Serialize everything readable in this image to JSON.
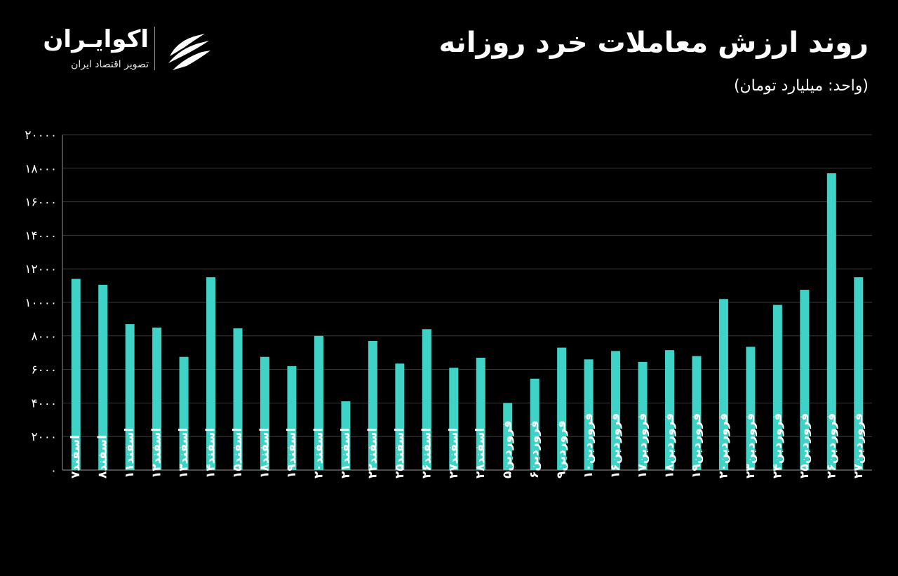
{
  "header": {
    "title": "روند ارزش معاملات خرد روزانه",
    "subtitle": "(واحد: میلیارد تومان)"
  },
  "logo": {
    "name": "اکوایـران",
    "tagline": "تصویر اقتصاد ایران"
  },
  "colors": {
    "background": "#000000",
    "bar": "#3ed3c6",
    "grid": "#3a3a3a",
    "text": "#ffffff"
  },
  "chart_data": {
    "type": "bar",
    "title": "روند ارزش معاملات خرد روزانه",
    "subtitle": "(واحد: میلیارد تومان)",
    "ylim": [
      0,
      20000
    ],
    "yticks": [
      0,
      2000,
      4000,
      6000,
      8000,
      10000,
      12000,
      14000,
      16000,
      18000,
      20000
    ],
    "ytick_labels": [
      "۰",
      "۲۰۰۰",
      "۴۰۰۰",
      "۶۰۰۰",
      "۸۰۰۰",
      "۱۰۰۰۰",
      "۱۲۰۰۰",
      "۱۴۰۰۰",
      "۱۶۰۰۰",
      "۱۸۰۰۰",
      "۲۰۰۰۰"
    ],
    "grid": true,
    "categories": [
      "اسفند۷",
      "اسفند۸",
      "اسفند۱۱",
      "اسفند۱۲",
      "اسفند۱۳",
      "اسفند۱۴",
      "اسفند۱۵",
      "اسفند۱۸",
      "اسفند۱۹",
      "اسفند۲۰",
      "اسفند۲۱",
      "اسفند۲۲",
      "اسفند۲۵",
      "اسفند۲۶",
      "اسفند۲۷",
      "اسفند۲۸",
      "فروردین۵",
      "فروردین۶",
      "فروردین۹",
      "فروردین۱۰",
      "فروردین۱۶",
      "فروردین۱۷",
      "فروردین۱۸",
      "فروردین۱۹",
      "فروردین۲۰",
      "فروردین۲۳",
      "فروردین۲۴",
      "فروردین۲۵",
      "فروردین۲۶",
      "فروردین۲۷"
    ],
    "values": [
      11400,
      11050,
      8700,
      8500,
      6750,
      11500,
      8450,
      6750,
      6200,
      8000,
      4100,
      7700,
      6350,
      8400,
      6100,
      6700,
      4000,
      5450,
      7300,
      6600,
      7100,
      6450,
      7150,
      6800,
      10200,
      7350,
      9850,
      10750,
      17700,
      11500
    ]
  }
}
